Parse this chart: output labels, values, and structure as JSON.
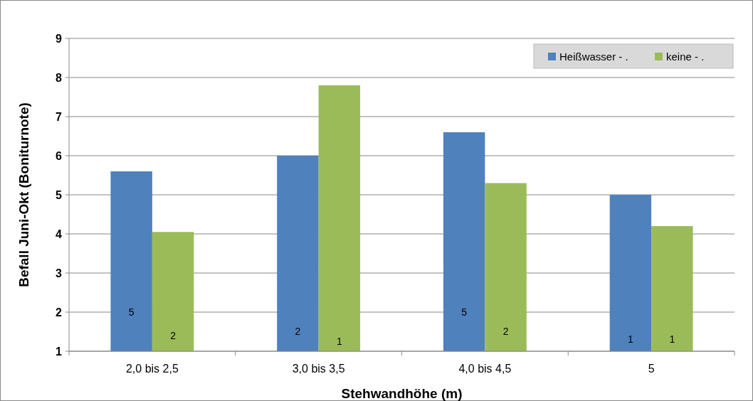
{
  "chart_data": {
    "type": "bar",
    "xlabel": "Stehwandhöhe (m)",
    "ylabel": "Befall Juni-Okt (Boniturnote)",
    "categories": [
      "2,0 bis 2,5",
      "3,0 bis 3,5",
      "4,0 bis 4,5",
      "5"
    ],
    "series": [
      {
        "name": "Heißwasser - .",
        "color": "#4f81bd",
        "values": [
          5.6,
          6.0,
          6.6,
          5.0
        ]
      },
      {
        "name": "keine - .",
        "color": "#9bbb59",
        "values": [
          4.05,
          7.8,
          5.3,
          4.2
        ]
      }
    ],
    "annotations": [
      {
        "text": "5",
        "x": "2,0 bis 2,5",
        "y": 2.0
      },
      {
        "text": "2",
        "x": "2,0 bis 2,5",
        "y": 1.4
      },
      {
        "text": "2",
        "x": "3,0 bis 3,5",
        "y": 1.5
      },
      {
        "text": "1",
        "x": "3,0 bis 3,5",
        "y": 1.25
      },
      {
        "text": "5",
        "x": "4,0 bis 4,5",
        "y": 2.0
      },
      {
        "text": "2",
        "x": "4,0 bis 4,5",
        "y": 1.5
      },
      {
        "text": "1",
        "x": "5",
        "y": 1.3
      },
      {
        "text": "1",
        "x": "5",
        "y": 1.3
      }
    ],
    "ylim": [
      1,
      9
    ],
    "yticks": [
      1,
      2,
      3,
      4,
      5,
      6,
      7,
      8,
      9
    ],
    "grid": "y",
    "legend": "top right"
  }
}
